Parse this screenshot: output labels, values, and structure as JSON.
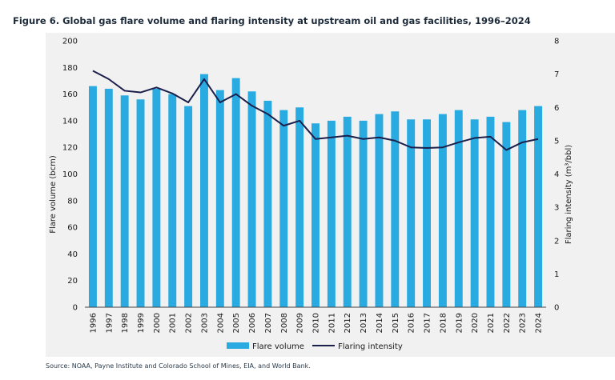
{
  "figure_title": "Figure 6. Global gas flare volume and flaring intensity at upstream oil and gas facilities, 1996–2024",
  "source_note": "Source: NOAA, Payne Institute and Colorado School of Mines, EIA, and World Bank.",
  "chart_data": {
    "type": "bar",
    "categories": [
      "1996",
      "1997",
      "1998",
      "1999",
      "2000",
      "2001",
      "2002",
      "2003",
      "2004",
      "2005",
      "2006",
      "2007",
      "2008",
      "2009",
      "2010",
      "2011",
      "2012",
      "2013",
      "2014",
      "2015",
      "2016",
      "2017",
      "2018",
      "2019",
      "2020",
      "2021",
      "2022",
      "2023",
      "2024"
    ],
    "series": [
      {
        "name": "Flare volume",
        "type": "bar",
        "axis": "left",
        "color": "#29abe2",
        "values": [
          166,
          164,
          159,
          156,
          164,
          160,
          151,
          175,
          163,
          172,
          162,
          155,
          148,
          150,
          138,
          140,
          143,
          140,
          145,
          147,
          141,
          141,
          145,
          148,
          141,
          143,
          139,
          148,
          151
        ]
      },
      {
        "name": "Flaring intensity",
        "type": "line",
        "axis": "right",
        "color": "#1b1f4b",
        "values": [
          7.1,
          6.85,
          6.5,
          6.45,
          6.6,
          6.42,
          6.15,
          6.85,
          6.15,
          6.4,
          6.05,
          5.8,
          5.45,
          5.6,
          5.05,
          5.1,
          5.15,
          5.05,
          5.1,
          5.0,
          4.8,
          4.78,
          4.8,
          4.95,
          5.08,
          5.12,
          4.72,
          4.95,
          5.05
        ]
      }
    ],
    "ylabel": "Flare volume (bcm)",
    "y2label": "Flaring intensity (m³/bbl)",
    "ylim": [
      0,
      200
    ],
    "y2lim": [
      0,
      8
    ],
    "yticks": [
      0,
      20,
      40,
      60,
      80,
      100,
      120,
      140,
      160,
      180,
      200
    ],
    "y2ticks": [
      0,
      1,
      2,
      3,
      4,
      5,
      6,
      7,
      8
    ],
    "grid": false,
    "legend_position": "bottom"
  }
}
